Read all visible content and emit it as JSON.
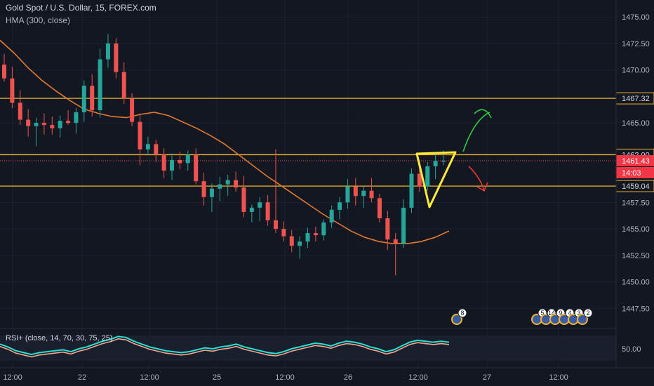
{
  "header": {
    "symbol": "Gold Spot / U.S. Dollar, 15, FOREX.com",
    "indicator": "HMA (300, close)",
    "rsi_label": "RSI+ (close, 14, 70, 30, 75, 25)"
  },
  "colors": {
    "background": "#131722",
    "up": "#26a69a",
    "down": "#ef5350",
    "hma": "#e0782f",
    "level_line": "#f0b429",
    "triangle": "#ffeb3b",
    "arrow_up": "#2ecc40",
    "arrow_down": "#e53935",
    "rsi_main": "#26e0d0",
    "rsi_signal": "#f4a58a"
  },
  "price_axis": {
    "ticks": [
      "1475.00",
      "1472.50",
      "1470.00",
      "1465.00",
      "1457.50",
      "1455.00",
      "1452.50",
      "1450.00",
      "1447.50"
    ],
    "badges": [
      {
        "label": "1467.32",
        "kind": "outline"
      },
      {
        "label": "1462.00",
        "kind": "outline"
      },
      {
        "label": "1461.43",
        "kind": "red"
      },
      {
        "label": "14:03",
        "kind": "red"
      },
      {
        "label": "1459.04",
        "kind": "outline"
      }
    ]
  },
  "rsi_axis": {
    "tick": "50.00"
  },
  "time_axis": {
    "ticks": [
      "12:00",
      "22",
      "12:00",
      "25",
      "12:00",
      "26",
      "12:00",
      "27",
      "12:00"
    ]
  },
  "events": [
    {
      "label": "8"
    },
    {
      "label": "5"
    },
    {
      "label": "14"
    },
    {
      "label": "9"
    },
    {
      "label": "4"
    },
    {
      "label": "3"
    },
    {
      "label": "2"
    }
  ],
  "chart_data": {
    "type": "candlestick",
    "title": "Gold Spot / U.S. Dollar, 15, FOREX.com",
    "ylim": [
      1445.6,
      1476.6
    ],
    "x_labels": [
      "12:00",
      "22",
      "12:00",
      "25",
      "12:00",
      "26",
      "12:00",
      "27",
      "12:00"
    ],
    "horizontal_levels": [
      1467.32,
      1462.0,
      1459.04
    ],
    "last_price": 1461.43,
    "hma_series": {
      "name": "HMA (300, close)",
      "values": [
        1472.8,
        1471.6,
        1470.2,
        1469.0,
        1468.0,
        1467.1,
        1466.3,
        1465.9,
        1465.6,
        1465.5,
        1465.8,
        1466.0,
        1465.7,
        1465.1,
        1464.5,
        1463.8,
        1463.0,
        1462.0,
        1461.0,
        1460.0,
        1459.1,
        1458.2,
        1457.3,
        1456.4,
        1455.6,
        1454.8,
        1454.2,
        1453.8,
        1453.6,
        1453.6,
        1453.8,
        1454.2,
        1454.8
      ]
    },
    "candles_ohlc": [
      [
        1470.5,
        1471.5,
        1468.9,
        1469.2
      ],
      [
        1469.2,
        1470.3,
        1466.4,
        1466.9
      ],
      [
        1466.9,
        1468.1,
        1464.8,
        1465.3
      ],
      [
        1465.3,
        1466.3,
        1463.7,
        1464.7
      ],
      [
        1464.7,
        1465.5,
        1462.8,
        1465.0
      ],
      [
        1465.0,
        1465.9,
        1463.9,
        1464.8
      ],
      [
        1464.8,
        1465.6,
        1463.9,
        1464.5
      ],
      [
        1464.5,
        1465.7,
        1463.6,
        1465.2
      ],
      [
        1465.2,
        1466.2,
        1464.8,
        1465.0
      ],
      [
        1465.0,
        1466.4,
        1464.0,
        1466.0
      ],
      [
        1466.0,
        1469.0,
        1465.1,
        1468.5
      ],
      [
        1468.5,
        1469.6,
        1465.6,
        1466.2
      ],
      [
        1466.2,
        1472.0,
        1465.5,
        1471.0
      ],
      [
        1471.0,
        1473.4,
        1470.2,
        1472.5
      ],
      [
        1472.5,
        1473.0,
        1469.2,
        1469.8
      ],
      [
        1469.8,
        1470.7,
        1466.8,
        1467.3
      ],
      [
        1467.3,
        1467.8,
        1464.7,
        1465.1
      ],
      [
        1465.1,
        1465.9,
        1461.0,
        1462.5
      ],
      [
        1462.5,
        1463.7,
        1462.1,
        1463.0
      ],
      [
        1463.0,
        1463.4,
        1461.3,
        1462.0
      ],
      [
        1462.0,
        1462.6,
        1459.8,
        1460.5
      ],
      [
        1460.5,
        1462.1,
        1459.6,
        1461.5
      ],
      [
        1461.5,
        1462.3,
        1460.6,
        1461.2
      ],
      [
        1461.2,
        1462.4,
        1460.5,
        1462.0
      ],
      [
        1462.0,
        1462.6,
        1459.2,
        1459.5
      ],
      [
        1459.5,
        1460.3,
        1457.2,
        1458.0
      ],
      [
        1458.0,
        1459.3,
        1456.6,
        1458.8
      ],
      [
        1458.8,
        1459.9,
        1457.6,
        1459.2
      ],
      [
        1459.2,
        1460.1,
        1458.1,
        1459.6
      ],
      [
        1459.6,
        1460.4,
        1458.5,
        1458.9
      ],
      [
        1458.9,
        1460.0,
        1456.1,
        1456.6
      ],
      [
        1456.6,
        1457.3,
        1455.6,
        1457.0
      ],
      [
        1457.0,
        1458.0,
        1455.7,
        1457.5
      ],
      [
        1457.5,
        1458.2,
        1455.3,
        1455.8
      ],
      [
        1455.8,
        1462.5,
        1454.6,
        1455.0
      ],
      [
        1455.0,
        1455.7,
        1453.8,
        1454.3
      ],
      [
        1454.3,
        1454.9,
        1452.8,
        1453.4
      ],
      [
        1453.4,
        1454.3,
        1452.2,
        1453.8
      ],
      [
        1453.8,
        1455.1,
        1453.2,
        1454.6
      ],
      [
        1454.6,
        1455.2,
        1453.8,
        1454.4
      ],
      [
        1454.4,
        1455.9,
        1453.9,
        1455.6
      ],
      [
        1455.6,
        1457.2,
        1455.1,
        1456.8
      ],
      [
        1456.8,
        1458.0,
        1455.9,
        1457.5
      ],
      [
        1457.5,
        1459.7,
        1456.9,
        1459.0
      ],
      [
        1459.0,
        1459.8,
        1457.2,
        1458.1
      ],
      [
        1458.1,
        1459.0,
        1457.0,
        1458.6
      ],
      [
        1458.6,
        1459.8,
        1457.5,
        1457.9
      ],
      [
        1457.9,
        1458.3,
        1455.6,
        1456.0
      ],
      [
        1456.0,
        1456.7,
        1453.0,
        1454.0
      ],
      [
        1454.0,
        1454.6,
        1450.6,
        1453.6
      ],
      [
        1453.6,
        1457.8,
        1453.2,
        1457.0
      ],
      [
        1457.0,
        1460.7,
        1456.5,
        1460.2
      ],
      [
        1460.2,
        1461.4,
        1458.5,
        1459.0
      ],
      [
        1459.0,
        1461.3,
        1458.6,
        1460.9
      ],
      [
        1460.9,
        1462.2,
        1459.7,
        1461.4
      ],
      [
        1461.4,
        1462.4,
        1461.0,
        1461.4
      ]
    ],
    "rsi": {
      "name": "RSI+ (close, 14, 70, 30, 75, 25)",
      "y_tick": 50,
      "values": [
        55,
        52,
        48,
        46,
        44,
        46,
        47,
        48,
        49,
        47,
        50,
        52,
        55,
        58,
        60,
        63,
        62,
        58,
        55,
        52,
        50,
        48,
        47,
        46,
        47,
        49,
        51,
        50,
        52,
        53,
        55,
        52,
        50,
        48,
        46,
        45,
        47,
        50,
        52,
        54,
        56,
        55,
        53,
        56,
        58,
        57,
        55,
        52,
        50,
        47,
        49,
        53,
        57,
        59,
        58,
        57,
        58,
        57
      ]
    },
    "annotations": [
      {
        "type": "triangle",
        "points": [
          [
            1462.7,
            "t1"
          ],
          [
            1462.7,
            "t2"
          ],
          [
            1458.1,
            "t3"
          ]
        ]
      },
      {
        "type": "arrow",
        "direction": "up"
      },
      {
        "type": "arrow",
        "direction": "down"
      }
    ]
  }
}
